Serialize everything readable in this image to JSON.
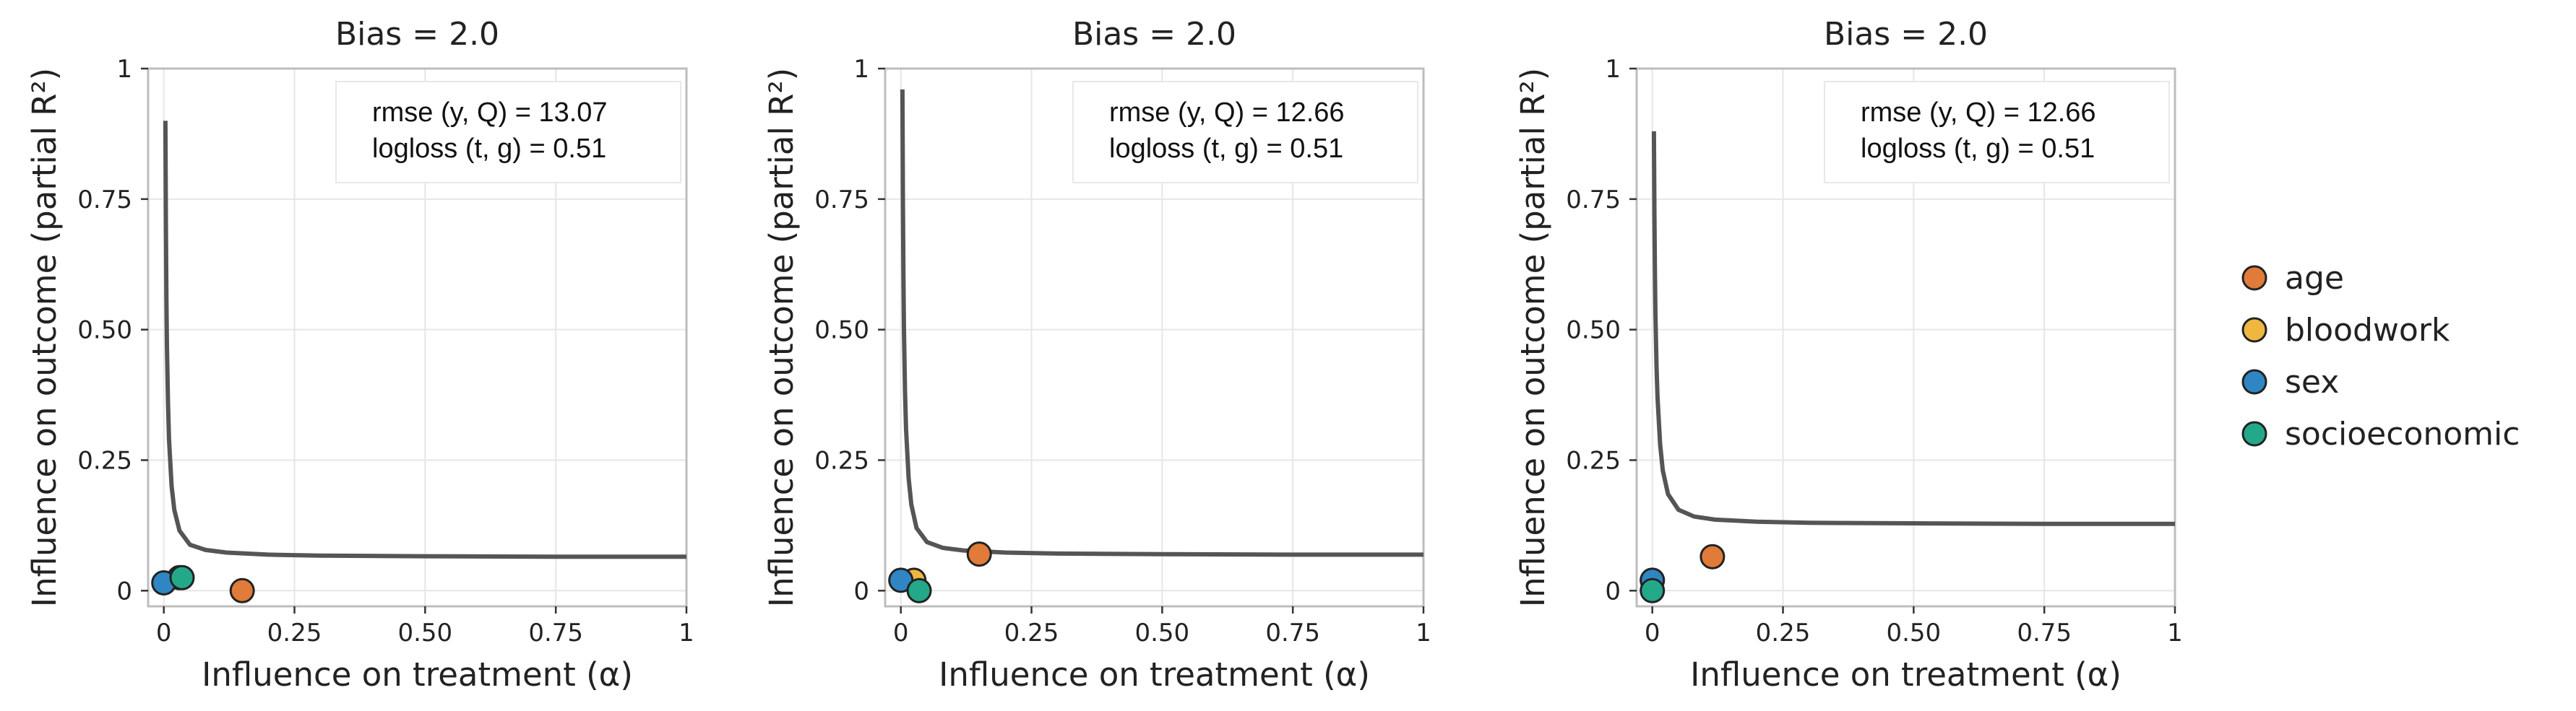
{
  "chart_data": [
    {
      "type": "scatter",
      "title": "Bias = 2.0",
      "xlabel": "Influence on treatment (α)",
      "ylabel": "Influence on outcome (partial R²)",
      "xlim": [
        -0.03,
        1.0
      ],
      "ylim": [
        -0.03,
        1.0
      ],
      "xticks": [
        0,
        0.25,
        0.5,
        0.75,
        1
      ],
      "xtick_labels": [
        "0",
        "0.25",
        "0.50",
        "0.75",
        "1"
      ],
      "yticks": [
        0,
        0.25,
        0.5,
        0.75,
        1
      ],
      "ytick_labels": [
        "0",
        "0.25",
        "0.50",
        "0.75",
        "1"
      ],
      "grid": true,
      "annotation": [
        "rmse (y, Q) = 13.07",
        "logloss (t, g) = 0.51"
      ],
      "bound_curve": {
        "x": [
          0.003,
          0.004,
          0.005,
          0.006,
          0.008,
          0.01,
          0.015,
          0.02,
          0.03,
          0.05,
          0.08,
          0.12,
          0.2,
          0.3,
          0.5,
          0.75,
          1.0
        ],
        "y": [
          0.9,
          0.7,
          0.56,
          0.47,
          0.36,
          0.29,
          0.2,
          0.155,
          0.115,
          0.088,
          0.078,
          0.073,
          0.069,
          0.067,
          0.066,
          0.065,
          0.065
        ]
      },
      "points": [
        {
          "name": "age",
          "x": 0.15,
          "y": 0.0
        },
        {
          "name": "bloodwork",
          "x": 0.03,
          "y": 0.025
        },
        {
          "name": "sex",
          "x": 0.0,
          "y": 0.015
        },
        {
          "name": "socioeconomic",
          "x": 0.035,
          "y": 0.025
        }
      ]
    },
    {
      "type": "scatter",
      "title": "Bias = 2.0",
      "xlabel": "Influence on treatment (α)",
      "ylabel": "Influence on outcome (partial R²)",
      "xlim": [
        -0.03,
        1.0
      ],
      "ylim": [
        -0.03,
        1.0
      ],
      "xticks": [
        0,
        0.25,
        0.5,
        0.75,
        1
      ],
      "xtick_labels": [
        "0",
        "0.25",
        "0.50",
        "0.75",
        "1"
      ],
      "yticks": [
        0,
        0.25,
        0.5,
        0.75,
        1
      ],
      "ytick_labels": [
        "0",
        "0.25",
        "0.50",
        "0.75",
        "1"
      ],
      "grid": true,
      "annotation": [
        "rmse (y, Q) = 12.66",
        "logloss (t, g) = 0.51"
      ],
      "bound_curve": {
        "x": [
          0.003,
          0.004,
          0.005,
          0.006,
          0.008,
          0.01,
          0.015,
          0.02,
          0.03,
          0.05,
          0.08,
          0.12,
          0.2,
          0.3,
          0.5,
          0.75,
          1.0
        ],
        "y": [
          0.96,
          0.74,
          0.6,
          0.5,
          0.38,
          0.31,
          0.215,
          0.165,
          0.12,
          0.093,
          0.082,
          0.077,
          0.073,
          0.071,
          0.07,
          0.069,
          0.069
        ]
      },
      "points": [
        {
          "name": "age",
          "x": 0.15,
          "y": 0.07
        },
        {
          "name": "bloodwork",
          "x": 0.025,
          "y": 0.02
        },
        {
          "name": "sex",
          "x": 0.0,
          "y": 0.02
        },
        {
          "name": "socioeconomic",
          "x": 0.035,
          "y": 0.0
        }
      ]
    },
    {
      "type": "scatter",
      "title": "Bias = 2.0",
      "xlabel": "Influence on treatment (α)",
      "ylabel": "Influence on outcome (partial R²)",
      "xlim": [
        -0.03,
        1.0
      ],
      "ylim": [
        -0.03,
        1.0
      ],
      "xticks": [
        0,
        0.25,
        0.5,
        0.75,
        1
      ],
      "xtick_labels": [
        "0",
        "0.25",
        "0.50",
        "0.75",
        "1"
      ],
      "yticks": [
        0,
        0.25,
        0.5,
        0.75,
        1
      ],
      "ytick_labels": [
        "0",
        "0.25",
        "0.50",
        "0.75",
        "1"
      ],
      "grid": true,
      "annotation": [
        "rmse (y, Q) = 12.66",
        "logloss (t, g) = 0.51"
      ],
      "bound_curve": {
        "x": [
          0.003,
          0.004,
          0.005,
          0.006,
          0.008,
          0.01,
          0.015,
          0.02,
          0.03,
          0.05,
          0.08,
          0.12,
          0.2,
          0.3,
          0.5,
          0.75,
          1.0
        ],
        "y": [
          0.88,
          0.72,
          0.61,
          0.53,
          0.43,
          0.37,
          0.28,
          0.23,
          0.185,
          0.155,
          0.142,
          0.136,
          0.132,
          0.13,
          0.129,
          0.128,
          0.128
        ]
      },
      "points": [
        {
          "name": "age",
          "x": 0.115,
          "y": 0.065
        },
        {
          "name": "bloodwork",
          "x": 0.0,
          "y": 0.02
        },
        {
          "name": "sex",
          "x": 0.0,
          "y": 0.02
        },
        {
          "name": "socioeconomic",
          "x": 0.0,
          "y": 0.0
        }
      ]
    }
  ],
  "legend": {
    "position": "right",
    "items": [
      {
        "name": "age",
        "color": "#e07b39"
      },
      {
        "name": "bloodwork",
        "color": "#efb73e"
      },
      {
        "name": "sex",
        "color": "#2f86c3"
      },
      {
        "name": "socioeconomic",
        "color": "#23a98a"
      }
    ]
  },
  "colors": {
    "curve": "#555555",
    "grid": "#e6e6e6",
    "frame": "#bdbdbd"
  }
}
